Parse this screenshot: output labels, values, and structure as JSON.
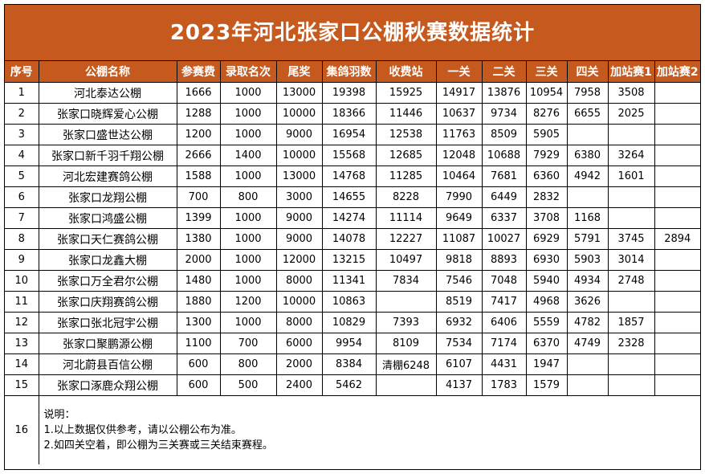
{
  "title": "2023年河北张家口公棚秋赛数据统计",
  "columns": [
    "序号",
    "公棚名称",
    "参赛费",
    "录取名次",
    "尾奖",
    "集鸽羽数",
    "收费站",
    "一关",
    "二关",
    "三关",
    "四关",
    "加站赛1",
    "加站赛2"
  ],
  "rows": [
    [
      "1",
      "河北泰达公棚",
      "1666",
      "1000",
      "13000",
      "19398",
      "15925",
      "14917",
      "13876",
      "10954",
      "7958",
      "3508",
      ""
    ],
    [
      "2",
      "张家口晓辉爱心公棚",
      "1288",
      "1000",
      "10000",
      "18366",
      "11446",
      "10637",
      "9734",
      "8276",
      "6655",
      "2025",
      ""
    ],
    [
      "3",
      "张家口盛世达公棚",
      "1200",
      "1000",
      "9000",
      "16954",
      "12538",
      "11763",
      "8509",
      "5905",
      "",
      "",
      ""
    ],
    [
      "4",
      "张家口新千羽千翔公棚",
      "2666",
      "1400",
      "10000",
      "15568",
      "12685",
      "12048",
      "10688",
      "7929",
      "6380",
      "3264",
      ""
    ],
    [
      "5",
      "河北宏建赛鸽公棚",
      "1588",
      "1000",
      "13000",
      "14768",
      "11285",
      "10464",
      "7681",
      "6360",
      "4942",
      "1601",
      ""
    ],
    [
      "6",
      "张家口龙翔公棚",
      "700",
      "800",
      "3000",
      "14655",
      "8228",
      "7990",
      "6449",
      "2832",
      "",
      "",
      ""
    ],
    [
      "7",
      "张家口鸿盛公棚",
      "1399",
      "1000",
      "9000",
      "14274",
      "11114",
      "9649",
      "6337",
      "3708",
      "1168",
      "",
      ""
    ],
    [
      "8",
      "张家口天仁赛鸽公棚",
      "1380",
      "1000",
      "9000",
      "14078",
      "12227",
      "11087",
      "10027",
      "6929",
      "5791",
      "3745",
      "2894"
    ],
    [
      "9",
      "张家口龙鑫大棚",
      "2000",
      "1000",
      "12000",
      "13215",
      "10497",
      "9818",
      "8893",
      "6930",
      "5903",
      "3014",
      ""
    ],
    [
      "10",
      "张家口万全君尔公棚",
      "1480",
      "1000",
      "8000",
      "11341",
      "7834",
      "7546",
      "7048",
      "5940",
      "4934",
      "2748",
      ""
    ],
    [
      "11",
      "张家口庆翔赛鸽公棚",
      "1880",
      "1200",
      "10000",
      "10863",
      "",
      "8519",
      "7417",
      "4968",
      "3626",
      "",
      ""
    ],
    [
      "12",
      "张家口张北冠宇公棚",
      "1300",
      "1000",
      "8000",
      "10829",
      "7393",
      "6932",
      "6406",
      "5559",
      "4782",
      "1857",
      ""
    ],
    [
      "13",
      "张家口聚鹏源公棚",
      "1100",
      "700",
      "6000",
      "9954",
      "8109",
      "7534",
      "7174",
      "6370",
      "4749",
      "2328",
      ""
    ],
    [
      "14",
      "河北蔚县百信公棚",
      "600",
      "800",
      "2000",
      "8384",
      "清棚6248",
      "6107",
      "4431",
      "1947",
      "",
      "",
      ""
    ],
    [
      "15",
      "张家口涿鹿众翔公棚",
      "600",
      "500",
      "2400",
      "5462",
      "",
      "4137",
      "1783",
      "1579",
      "",
      "",
      ""
    ]
  ],
  "notes": {
    "index": "16",
    "heading": "说明：",
    "lines": [
      "1.以上数据仅供参考，请以公棚公布为准。",
      "2.如四关空着，即公棚为三关赛或三关结束赛程。"
    ]
  },
  "colors": {
    "header_bg": "#c65a1e",
    "header_text": "#ffffff"
  }
}
